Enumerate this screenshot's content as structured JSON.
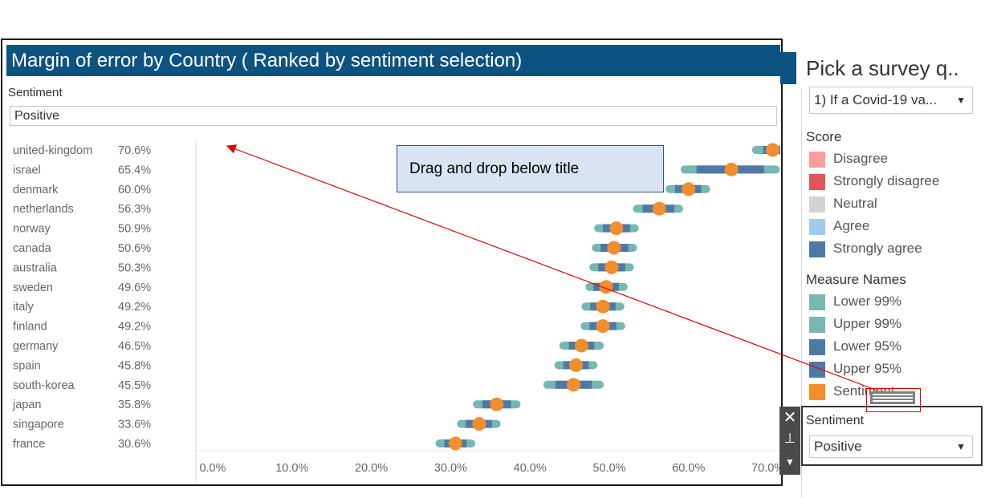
{
  "dashboard": {
    "title": "Margin of error by Country ( Ranked by sentiment selection)",
    "sentiment_label": "Sentiment",
    "sentiment_value": "Positive"
  },
  "callout": {
    "text": "Drag and drop below title"
  },
  "right_panel": {
    "title": "Pick a survey q..",
    "question_select": "1) If a Covid-19 va...",
    "score": {
      "heading": "Score",
      "items": [
        {
          "label": "Disagree",
          "color": "#ff9d9a"
        },
        {
          "label": "Strongly disagree",
          "color": "#e15759"
        },
        {
          "label": "Neutral",
          "color": "#d7d2cf"
        },
        {
          "label": "Agree",
          "color": "#a0cbe8"
        },
        {
          "label": "Strongly agree",
          "color": "#4e79a7"
        }
      ]
    },
    "measure_names": {
      "heading": "Measure Names",
      "items": [
        {
          "label": "Lower 99%",
          "color": "#76b7b2"
        },
        {
          "label": "Upper 99%",
          "color": "#76b7b2"
        },
        {
          "label": "Lower 95%",
          "color": "#4e79a7"
        },
        {
          "label": "Upper 95%",
          "color": "#4e79a7"
        },
        {
          "label": "Sentiment",
          "color": "#f28e2b"
        }
      ]
    },
    "sentiment_filter": {
      "label": "Sentiment",
      "value": "Positive"
    }
  },
  "icons": {
    "close": "close-icon",
    "pin": "pin-icon",
    "menu": "dropdown-arrow-icon",
    "grip": "drag-grip-icon"
  },
  "chart_data": {
    "type": "scatter",
    "xlim": [
      0,
      72
    ],
    "x_ticks": [
      "0.0%",
      "10.0%",
      "20.0%",
      "30.0%",
      "40.0%",
      "50.0%",
      "60.0%",
      "70.0%"
    ],
    "x_tick_values": [
      0,
      10,
      20,
      30,
      40,
      50,
      60,
      70
    ],
    "colors": {
      "ci99": "#76b7b2",
      "ci95": "#4e79a7",
      "point": "#f28e2b"
    },
    "countries": [
      {
        "name": "united-kingdom",
        "label": "70.6%",
        "value": 70.6,
        "ci99": [
          68.5,
          72.5
        ],
        "ci95": [
          69.4,
          71.8
        ]
      },
      {
        "name": "israel",
        "label": "65.4%",
        "value": 65.4,
        "ci99": [
          59.5,
          71.0
        ],
        "ci95": [
          61.0,
          69.5
        ]
      },
      {
        "name": "denmark",
        "label": "60.0%",
        "value": 60.0,
        "ci99": [
          57.6,
          62.2
        ],
        "ci95": [
          58.3,
          61.6
        ]
      },
      {
        "name": "netherlands",
        "label": "56.3%",
        "value": 56.3,
        "ci99": [
          53.5,
          58.8
        ],
        "ci95": [
          54.2,
          58.2
        ]
      },
      {
        "name": "norway",
        "label": "50.9%",
        "value": 50.9,
        "ci99": [
          48.6,
          53.2
        ],
        "ci95": [
          49.2,
          52.6
        ]
      },
      {
        "name": "canada",
        "label": "50.6%",
        "value": 50.6,
        "ci99": [
          48.3,
          53.0
        ],
        "ci95": [
          48.9,
          52.4
        ]
      },
      {
        "name": "australia",
        "label": "50.3%",
        "value": 50.3,
        "ci99": [
          48.0,
          52.6
        ],
        "ci95": [
          48.6,
          52.0
        ]
      },
      {
        "name": "sweden",
        "label": "49.6%",
        "value": 49.6,
        "ci99": [
          47.5,
          51.8
        ],
        "ci95": [
          48.0,
          51.2
        ]
      },
      {
        "name": "italy",
        "label": "49.2%",
        "value": 49.2,
        "ci99": [
          47.0,
          51.4
        ],
        "ci95": [
          47.6,
          50.8
        ]
      },
      {
        "name": "finland",
        "label": "49.2%",
        "value": 49.2,
        "ci99": [
          46.9,
          51.5
        ],
        "ci95": [
          47.5,
          50.9
        ]
      },
      {
        "name": "germany",
        "label": "46.5%",
        "value": 46.5,
        "ci99": [
          44.2,
          48.8
        ],
        "ci95": [
          44.9,
          48.1
        ]
      },
      {
        "name": "spain",
        "label": "45.8%",
        "value": 45.8,
        "ci99": [
          43.6,
          48.0
        ],
        "ci95": [
          44.2,
          47.4
        ]
      },
      {
        "name": "south-korea",
        "label": "45.5%",
        "value": 45.5,
        "ci99": [
          42.2,
          48.8
        ],
        "ci95": [
          43.2,
          47.8
        ]
      },
      {
        "name": "japan",
        "label": "35.8%",
        "value": 35.8,
        "ci99": [
          33.3,
          38.3
        ],
        "ci95": [
          34.0,
          37.6
        ]
      },
      {
        "name": "singapore",
        "label": "33.6%",
        "value": 33.6,
        "ci99": [
          31.3,
          35.8
        ],
        "ci95": [
          31.9,
          35.2
        ]
      },
      {
        "name": "france",
        "label": "30.6%",
        "value": 30.6,
        "ci99": [
          28.6,
          32.6
        ],
        "ci95": [
          29.2,
          32.0
        ]
      }
    ]
  }
}
